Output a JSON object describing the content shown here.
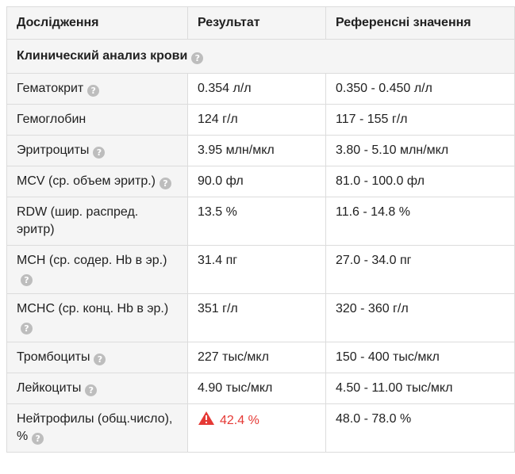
{
  "header": {
    "col1": "Дослідження",
    "col2": "Результат",
    "col3": "Референсні значення"
  },
  "section": {
    "title": "Клинический анализ крови",
    "help_icon": "question-circle-icon"
  },
  "rows": [
    {
      "name": "Гематокрит",
      "help": true,
      "result": "0.354 л/л",
      "reference": "0.350 - 0.450 л/л",
      "warning": false
    },
    {
      "name": "Гемоглобин",
      "help": false,
      "result": "124 г/л",
      "reference": "117 - 155 г/л",
      "warning": false
    },
    {
      "name": "Эритроциты",
      "help": true,
      "result": "3.95 млн/мкл",
      "reference": "3.80 - 5.10 млн/мкл",
      "warning": false
    },
    {
      "name": "MCV (ср. объем эритр.)",
      "help": true,
      "result": "90.0 фл",
      "reference": "81.0 - 100.0 фл",
      "warning": false
    },
    {
      "name": "RDW (шир. распред. эритр)",
      "help": false,
      "result": "13.5 %",
      "reference": "11.6 - 14.8 %",
      "warning": false
    },
    {
      "name": "MCH (ср. содер. Hb в эр.)",
      "help": true,
      "result": "31.4 пг",
      "reference": "27.0 - 34.0 пг",
      "warning": false
    },
    {
      "name": "MCHC (ср. конц. Hb в эр.)",
      "help": true,
      "result": "351 г/л",
      "reference": "320 - 360 г/л",
      "warning": false
    },
    {
      "name": "Тромбоциты",
      "help": true,
      "result": "227 тыс/мкл",
      "reference": "150 - 400 тыс/мкл",
      "warning": false
    },
    {
      "name": "Лейкоциты",
      "help": true,
      "result": "4.90 тыс/мкл",
      "reference": "4.50 - 11.00 тыс/мкл",
      "warning": false
    },
    {
      "name": "Нейтрофилы (общ.число), %",
      "help": true,
      "result": "42.4 %",
      "reference": "48.0 - 78.0 %",
      "warning": true
    }
  ],
  "colors": {
    "warning": "#e53935",
    "header_bg": "#f5f5f5",
    "border": "#dcdcdc",
    "help_icon": "#bdbdbd"
  },
  "icons": {
    "help": "question-circle-icon",
    "warning": "warning-triangle-icon"
  }
}
